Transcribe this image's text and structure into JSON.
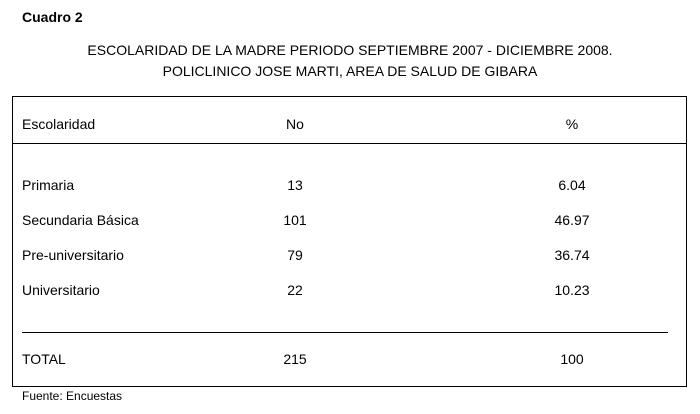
{
  "header": {
    "label": "Cuadro 2",
    "title_lines": [
      "ESCOLARIDAD DE LA MADRE PERIODO SEPTIEMBRE 2007 - DICIEMBRE 2008.",
      "POLICLINICO JOSE MARTI, AREA DE SALUD DE GIBARA"
    ]
  },
  "table": {
    "columns": [
      "Escolaridad",
      "No",
      "%"
    ],
    "rows": [
      [
        "Primaria",
        13,
        6.04
      ],
      [
        "Secundaria Básica",
        101,
        46.97
      ],
      [
        "Pre-universitario",
        79,
        36.74
      ],
      [
        "Universitario",
        22,
        10.23
      ]
    ],
    "total": [
      "TOTAL",
      215,
      100
    ]
  },
  "footer": {
    "source": "Fuente: Encuestas"
  }
}
